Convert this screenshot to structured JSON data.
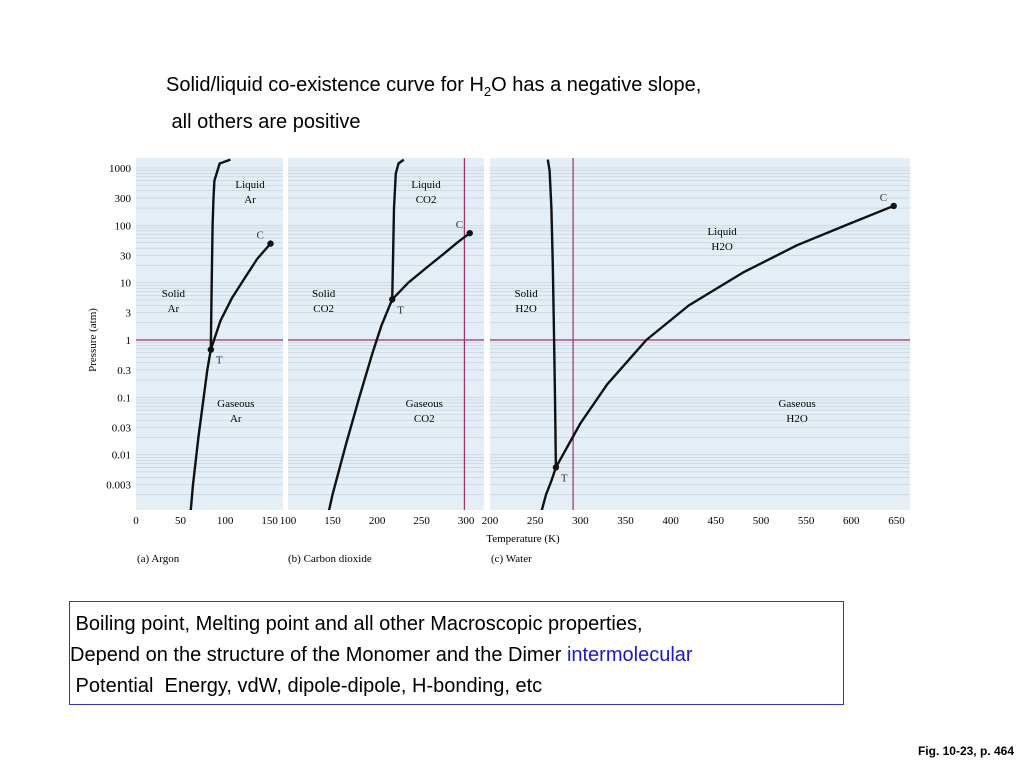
{
  "title": {
    "line1_pre": "Solid/liquid co-existence curve for H",
    "line1_sub": "2",
    "line1_post": "O has a negative slope,",
    "line2": " all others are positive"
  },
  "info_box": {
    "line1": " Boiling point, Melting point and all other Macroscopic properties,",
    "line2_pre": "Depend on the structure of the Monomer and the Dimer ",
    "line2_highlight": "intermolecular",
    "line3": " Potential  Energy, vdW, dipole-dipole, H-bonding, etc"
  },
  "fig_ref": "Fig. 10-23, p. 464",
  "colors": {
    "panel_bg": "#e4eef6",
    "grid": "#9aa6b4",
    "reference_line": "#a0306a",
    "curve": "#111111",
    "box_border": "#3333cc",
    "highlight": "#1a1acc"
  },
  "chart_data": {
    "type": "line",
    "ylabel": "Pressure (atm)",
    "xlabel": "Temperature (K)",
    "yscale": "log",
    "ylim": [
      0.001,
      1400
    ],
    "ytick_labels": [
      "1000",
      "300",
      "100",
      "30",
      "10",
      "3",
      "1",
      "0.3",
      "0.1",
      "0.03",
      "0.01",
      "0.003"
    ],
    "ytick_values": [
      1000,
      300,
      100,
      30,
      10,
      3,
      1,
      0.3,
      0.1,
      0.03,
      0.01,
      0.003
    ],
    "reference_pressure": 1,
    "panels": [
      {
        "caption": "(a) Argon",
        "xlim": [
          0,
          165
        ],
        "xticks": [
          0,
          50,
          100,
          150
        ],
        "region_labels": [
          {
            "line1": "Liquid",
            "line2": "Ar",
            "x": 128,
            "p": 400
          },
          {
            "line1": "Solid",
            "line2": "Ar",
            "x": 42,
            "p": 5
          },
          {
            "line1": "Gaseous",
            "line2": "Ar",
            "x": 112,
            "p": 0.06
          }
        ],
        "triple_point": {
          "label": "T",
          "x": 84,
          "p": 0.68
        },
        "critical_point": {
          "label": "C",
          "x": 151,
          "p": 48
        },
        "series": [
          {
            "x": [
              59,
              64,
              70,
              76,
              80,
              84
            ],
            "y": [
              0.0004,
              0.003,
              0.02,
              0.1,
              0.3,
              0.68
            ]
          },
          {
            "x": [
              84,
              95,
              108,
              122,
              136,
              151
            ],
            "y": [
              0.68,
              2.2,
              5.5,
              12,
              26,
              48
            ]
          },
          {
            "x": [
              84,
              85,
              86,
              87,
              88,
              94,
              106
            ],
            "y": [
              0.68,
              10,
              100,
              300,
              600,
              1200,
              1400
            ]
          }
        ]
      },
      {
        "caption": "(b) Carbon dioxide",
        "xlim": [
          100,
          320
        ],
        "xticks": [
          100,
          150,
          200,
          250,
          300
        ],
        "region_labels": [
          {
            "line1": "Liquid",
            "line2": "CO2",
            "x": 255,
            "p": 400
          },
          {
            "line1": "Solid",
            "line2": "CO2",
            "x": 140,
            "p": 5
          },
          {
            "line1": "Gaseous",
            "line2": "CO2",
            "x": 253,
            "p": 0.06
          }
        ],
        "triple_point": {
          "label": "T",
          "x": 217,
          "p": 5.1
        },
        "critical_point": {
          "label": "C",
          "x": 304,
          "p": 73
        },
        "series": [
          {
            "x": [
              140,
              150,
              165,
              180,
              195,
              205,
              217
            ],
            "y": [
              0.0004,
              0.002,
              0.015,
              0.1,
              0.6,
              1.8,
              5.1
            ]
          },
          {
            "x": [
              217,
              235,
              255,
              275,
              290,
              304
            ],
            "y": [
              5.1,
              10,
              18,
              32,
              50,
              73
            ]
          },
          {
            "x": [
              217,
              218,
              219,
              221,
              224,
              230
            ],
            "y": [
              5.1,
              30,
              200,
              800,
              1200,
              1400
            ]
          }
        ]
      },
      {
        "caption": "(c) Water",
        "xlim": [
          200,
          665
        ],
        "xticks": [
          200,
          250,
          300,
          350,
          400,
          450,
          500,
          550,
          600,
          650
        ],
        "region_labels": [
          {
            "line1": "Liquid",
            "line2": "H2O",
            "x": 457,
            "p": 60
          },
          {
            "line1": "Solid",
            "line2": "H2O",
            "x": 240,
            "p": 5
          },
          {
            "line1": "Gaseous",
            "line2": "H2O",
            "x": 540,
            "p": 0.06
          }
        ],
        "triple_point": {
          "label": "T",
          "x": 273,
          "p": 0.006
        },
        "critical_point": {
          "label": "C",
          "x": 647,
          "p": 218
        },
        "series": [
          {
            "x": [
              250,
              256,
              262,
              268,
              273
            ],
            "y": [
              0.0004,
              0.0009,
              0.002,
              0.0035,
              0.006
            ]
          },
          {
            "x": [
              273,
              300,
              330,
              373,
              420,
              480,
              540,
              600,
              647
            ],
            "y": [
              0.006,
              0.035,
              0.17,
              1,
              4,
              15,
              45,
              110,
              218
            ]
          },
          {
            "x": [
              273,
              272,
              271,
              269.5,
              268,
              266,
              264
            ],
            "y": [
              0.006,
              0.1,
              1,
              20,
              200,
              900,
              1400
            ]
          }
        ]
      }
    ]
  }
}
